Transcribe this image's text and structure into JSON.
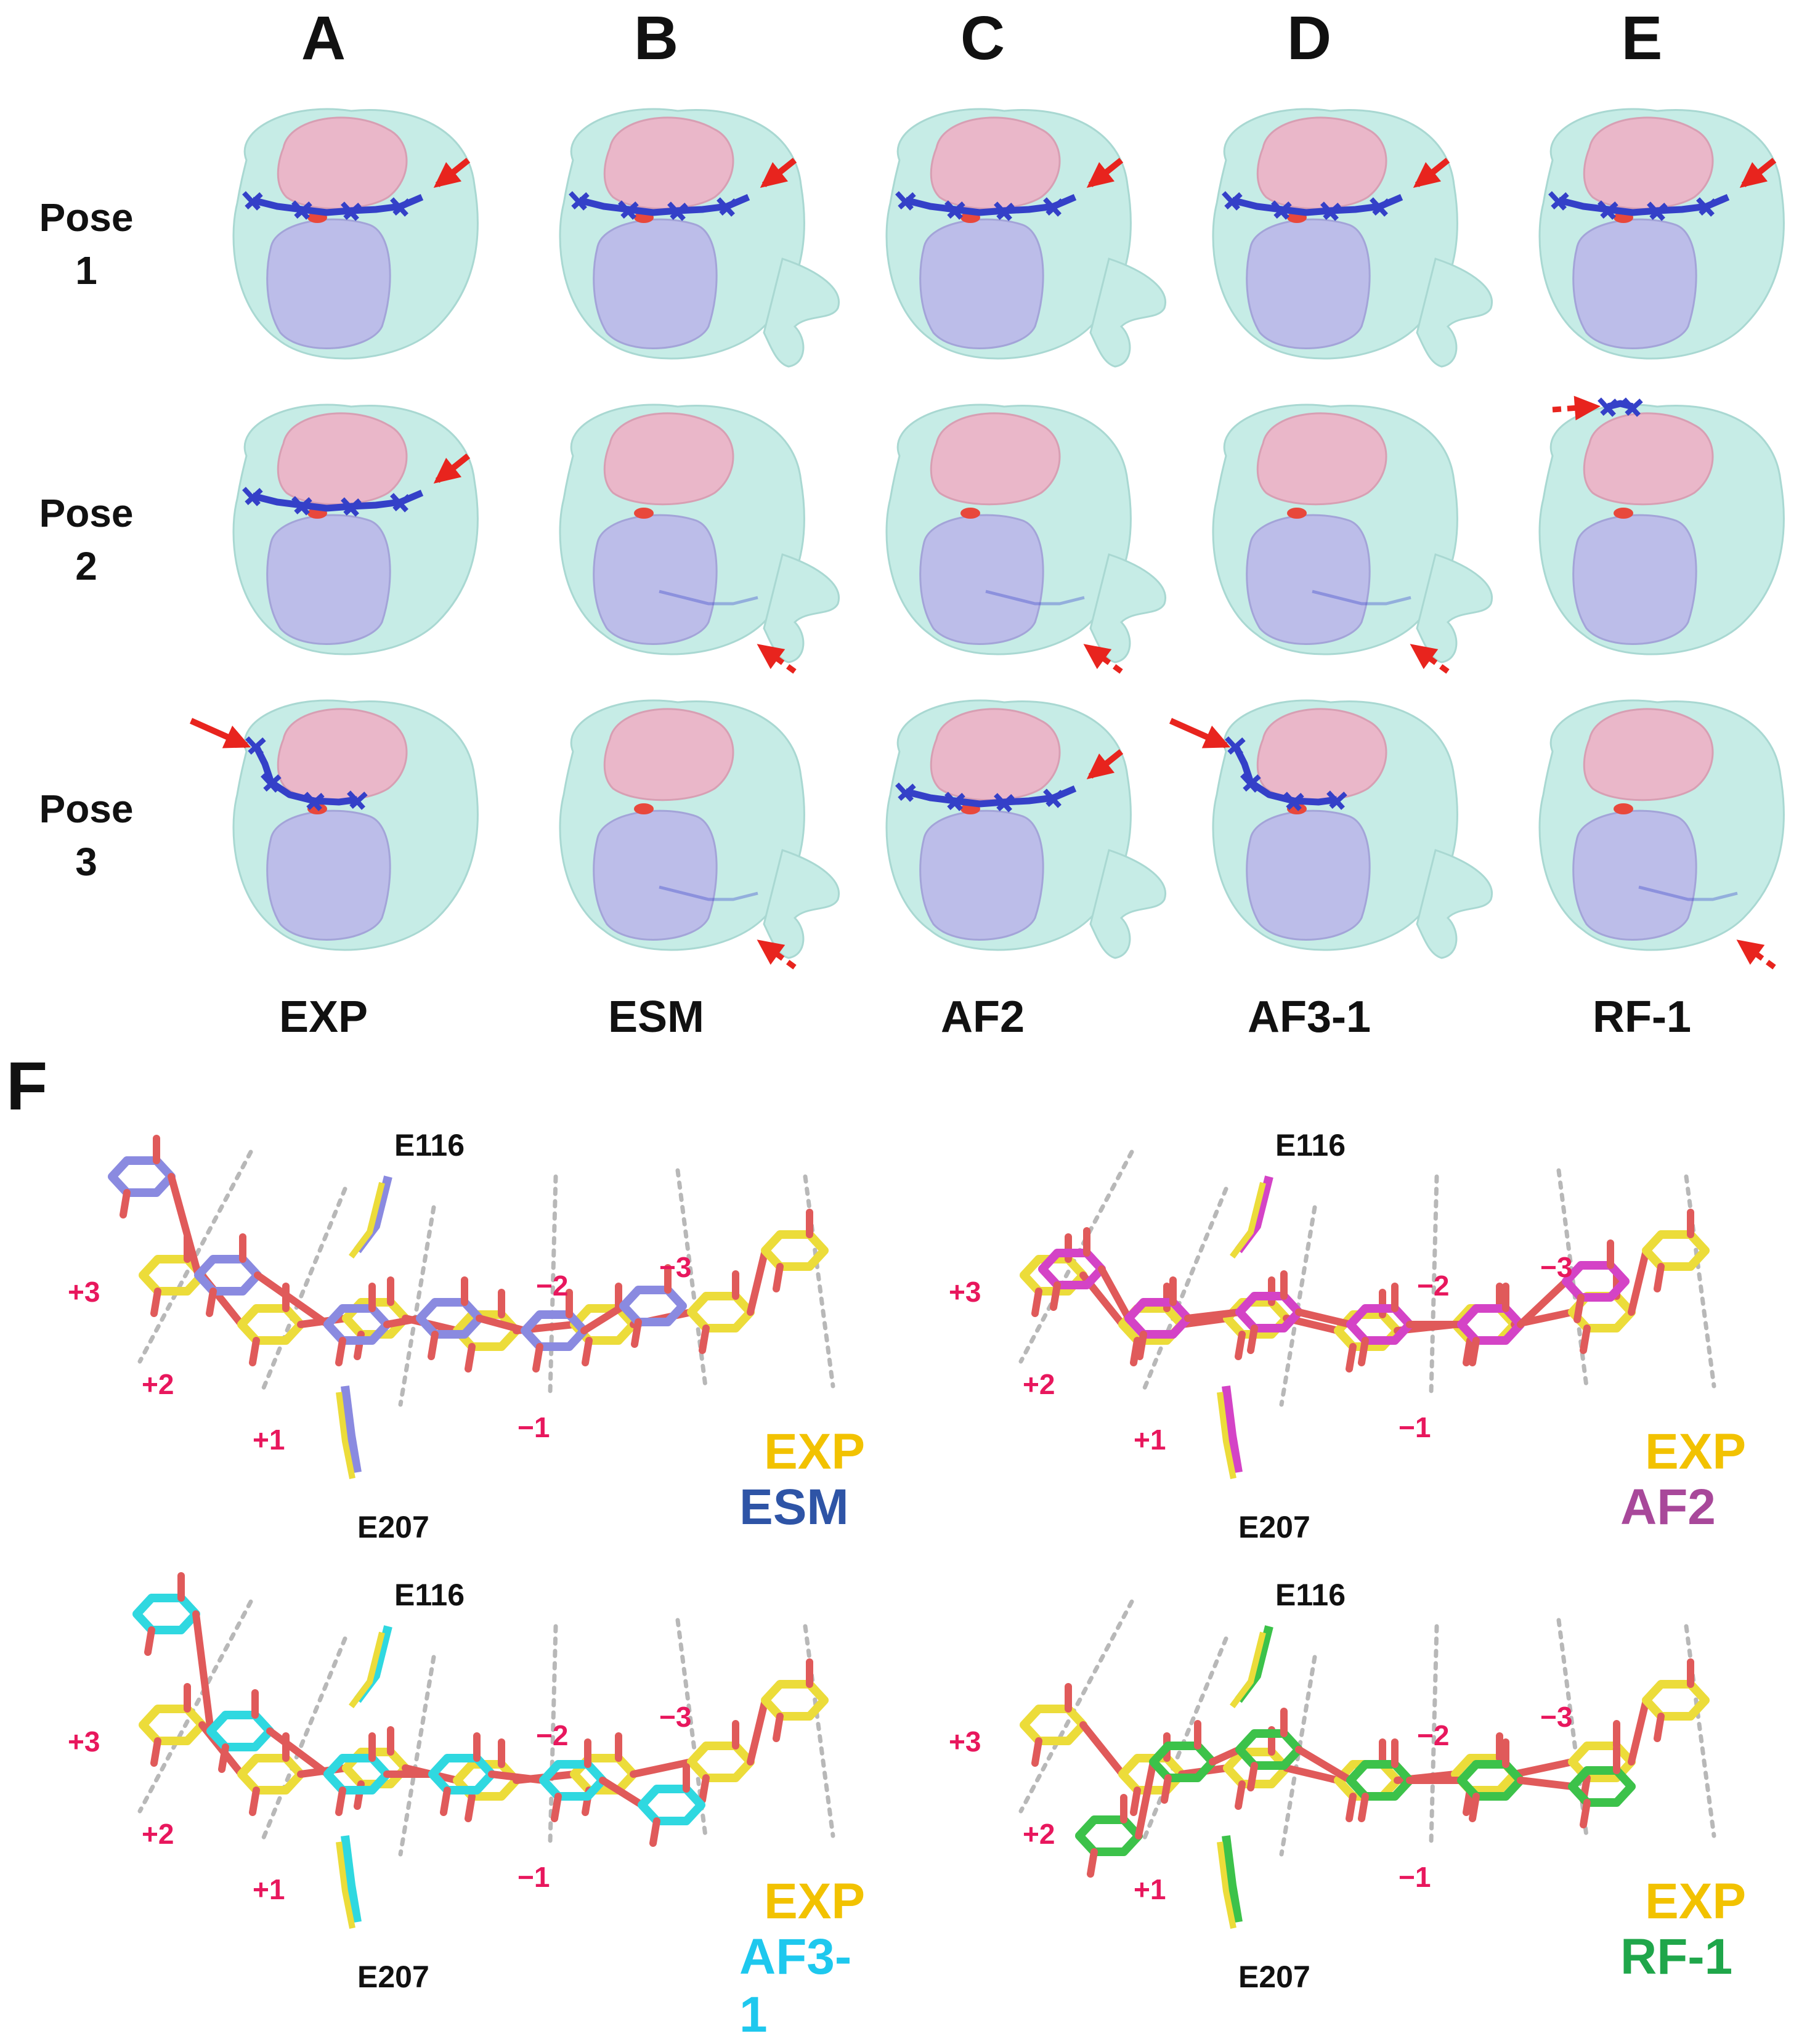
{
  "columns": [
    {
      "letter": "A",
      "method": "EXP"
    },
    {
      "letter": "B",
      "method": "ESM"
    },
    {
      "letter": "C",
      "method": "AF2"
    },
    {
      "letter": "D",
      "method": "AF3-1"
    },
    {
      "letter": "E",
      "method": "RF-1"
    }
  ],
  "poses": [
    {
      "line1": "Pose",
      "line2": "1"
    },
    {
      "line1": "Pose",
      "line2": "2"
    },
    {
      "line1": "Pose",
      "line2": "3"
    }
  ],
  "panel_f": {
    "letter": "F",
    "subpanels": [
      {
        "top_residue": "E116",
        "bottom_residue": "E207",
        "legend_ref": "EXP",
        "legend_pred": "ESM",
        "ref_color": "#f2c200",
        "pred_color": "#2e54a6",
        "subsites": [
          "+3",
          "+2",
          "+1",
          "−1",
          "−2",
          "−3"
        ]
      },
      {
        "top_residue": "E116",
        "bottom_residue": "E207",
        "legend_ref": "EXP",
        "legend_pred": "AF2",
        "ref_color": "#f2c200",
        "pred_color": "#a8489a",
        "subsites": [
          "+3",
          "+2",
          "+1",
          "−1",
          "−2",
          "−3"
        ]
      },
      {
        "top_residue": "E116",
        "bottom_residue": "E207",
        "legend_ref": "EXP",
        "legend_pred": "AF3-1",
        "ref_color": "#f2c200",
        "pred_color": "#1ec8ee",
        "subsites": [
          "+3",
          "+2",
          "+1",
          "−1",
          "−2",
          "−3"
        ]
      },
      {
        "top_residue": "E116",
        "bottom_residue": "E207",
        "legend_ref": "EXP",
        "legend_pred": "RF-1",
        "ref_color": "#f2c200",
        "pred_color": "#1fa64a",
        "subsites": [
          "+3",
          "+2",
          "+1",
          "−1",
          "−2",
          "−3"
        ]
      }
    ]
  },
  "colors": {
    "surface": "#c6ece6",
    "pink_domain": "#eab7c9",
    "lavender_domain": "#bcbde9",
    "ligand": "#3440c8",
    "arrow": "#e8241e",
    "exp_stick": "#ecdc3a",
    "oxygen": "#e05a5a",
    "esm_stick": "#8a8ae0",
    "af2_stick": "#d443c6",
    "af3_stick": "#2fd8e0",
    "rf_stick": "#3cc24a",
    "subsite_line": "#b8b8b8"
  }
}
